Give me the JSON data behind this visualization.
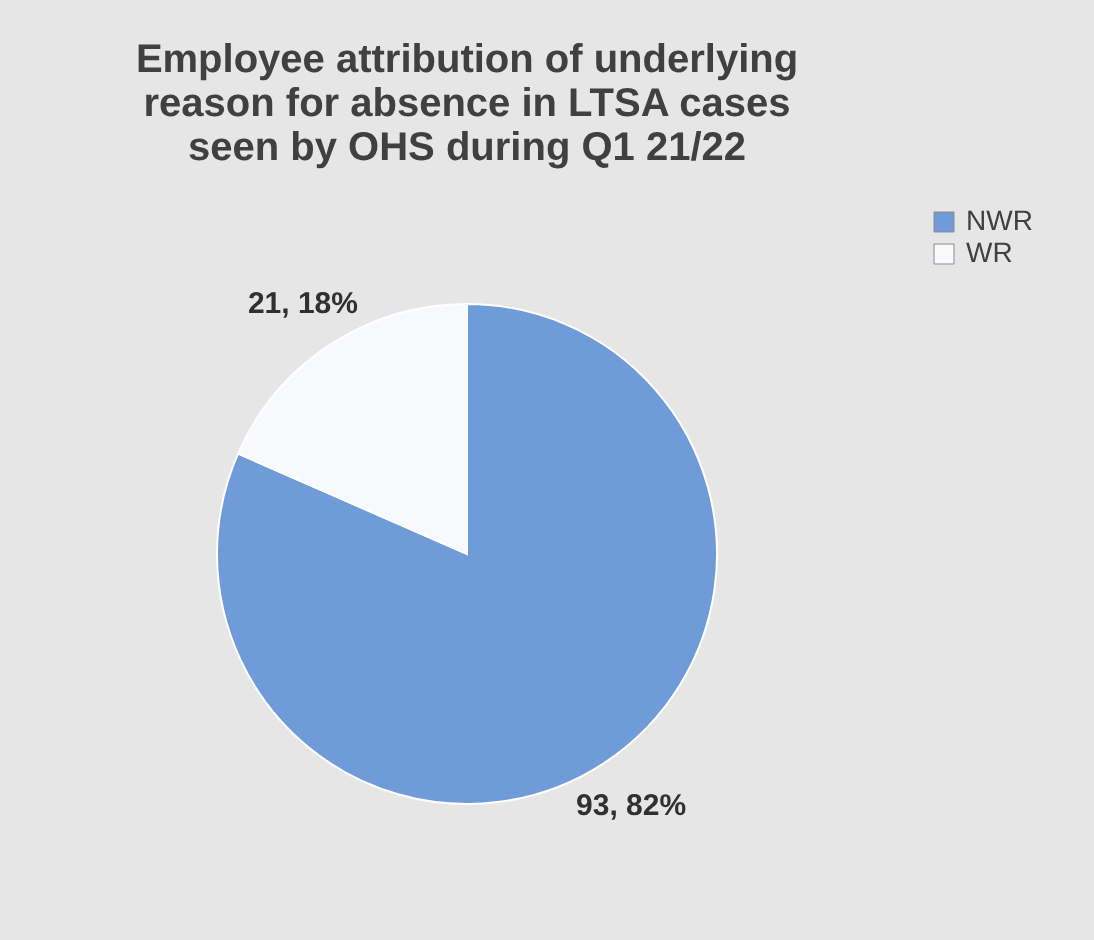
{
  "chart_data": {
    "type": "pie",
    "title": [
      "Employee attribution of underlying",
      "reason for absence in LTSA cases",
      "seen by OHS during  Q1 21/22"
    ],
    "categories": [
      "NWR",
      "WR"
    ],
    "values": [
      93,
      21
    ],
    "colors": [
      "#6f9bd9",
      "#f7f9fd"
    ],
    "value_labels": [
      "93, 82%",
      "21, 18%"
    ],
    "legend": "right"
  }
}
